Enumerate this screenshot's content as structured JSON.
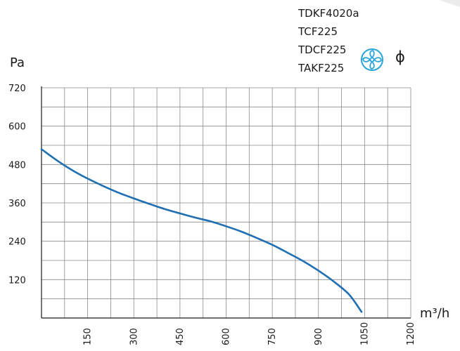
{
  "models": [
    "TDKF4020a",
    "TCF225",
    "TDCF225",
    "TAKF225"
  ],
  "icons": {
    "fan": "fan-icon",
    "diameter_symbol": "ϕ"
  },
  "colors": {
    "curve": "#1f6fb2",
    "icon": "#2aa4dc",
    "grid": "#8a8a8a",
    "axis": "#1a1a1a"
  },
  "chart_data": {
    "type": "line",
    "xlabel": "m³/h",
    "ylabel": "Pa",
    "xlim": [
      0,
      1200
    ],
    "ylim": [
      0,
      720
    ],
    "x_ticks": [
      150,
      300,
      450,
      600,
      750,
      900,
      1050,
      1200
    ],
    "y_ticks": [
      120,
      240,
      360,
      480,
      600,
      720
    ],
    "grid": true,
    "series": [
      {
        "points": [
          [
            0,
            528
          ],
          [
            50,
            493
          ],
          [
            100,
            462
          ],
          [
            150,
            436
          ],
          [
            200,
            413
          ],
          [
            250,
            392
          ],
          [
            300,
            374
          ],
          [
            350,
            357
          ],
          [
            400,
            341
          ],
          [
            450,
            327
          ],
          [
            500,
            314
          ],
          [
            550,
            302
          ],
          [
            600,
            287
          ],
          [
            650,
            270
          ],
          [
            700,
            250
          ],
          [
            750,
            229
          ],
          [
            800,
            204
          ],
          [
            850,
            178
          ],
          [
            900,
            148
          ],
          [
            950,
            114
          ],
          [
            1000,
            73
          ],
          [
            1040,
            19
          ]
        ]
      }
    ]
  }
}
